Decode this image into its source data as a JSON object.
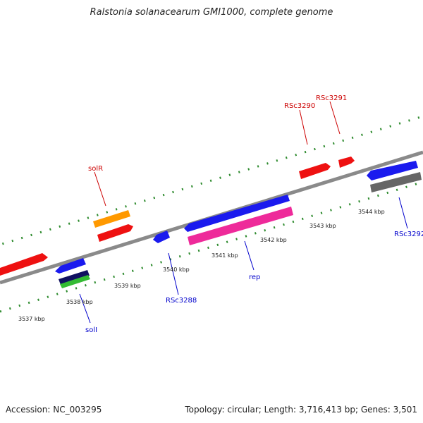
{
  "title": "Ralstonia solanacearum GMI1000, complete genome",
  "footer": {
    "accession": "Accession: NC_003295",
    "summary": "Topology: circular; Length: 3,716,413 bp; Genes: 3,501"
  },
  "colors": {
    "backbone": "#8a8a8a",
    "tick": "#2e8b2e",
    "forward_label": "#cc0000",
    "reverse_label": "#0000cc",
    "red": "#ee1111",
    "orange": "#ff9900",
    "blue": "#1a1aee",
    "navy": "#101060",
    "green": "#33bb33",
    "pink": "#ee2a9a",
    "gray": "#666666"
  },
  "kbp_labels": [
    "3537 kbp",
    "3538 kbp",
    "3539 kbp",
    "3540 kbp",
    "3541 kbp",
    "3542 kbp",
    "3543 kbp",
    "3544 kbp"
  ],
  "gene_labels": {
    "solR": "solR",
    "rsc3290": "RSc3290",
    "rsc3291": "RSc3291",
    "soll": "solI",
    "rsc3288": "RSc3288",
    "rep": "rep",
    "rsc3292": "RSc3292"
  }
}
